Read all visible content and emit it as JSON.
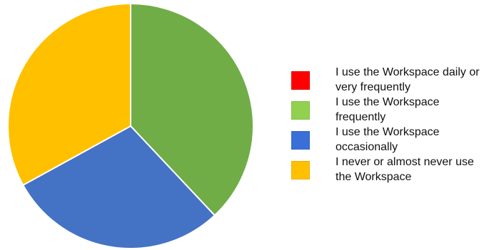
{
  "chart_data": {
    "type": "pie",
    "title": "",
    "legend_position": "right",
    "slices": [
      {
        "label": "I use the Workspace daily or very frequently",
        "value": 0,
        "color": "#ff0000"
      },
      {
        "label": "I use the Workspace frequently",
        "value": 38,
        "color": "#70ad47"
      },
      {
        "label": "I use the Workspace occasionally",
        "value": 29,
        "color": "#4472c4"
      },
      {
        "label": "I never or almost never use the Workspace",
        "value": 33,
        "color": "#ffc000"
      }
    ],
    "legend_colors": [
      "#ff0000",
      "#92d050",
      "#3a6fd8",
      "#ffc000"
    ]
  }
}
